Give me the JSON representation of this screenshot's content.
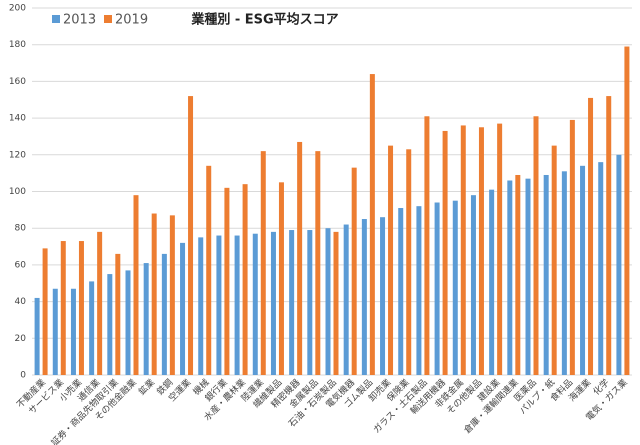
{
  "chart_data": {
    "type": "bar",
    "title": "業種別 - ESG平均スコア",
    "categories": [
      "不動産業",
      "サービス業",
      "小売業",
      "通信業",
      "証券・商品先物取引業",
      "その他金融業",
      "鉱業",
      "鉄鋼",
      "空運業",
      "機械",
      "銀行業",
      "水産・農林業",
      "陸運業",
      "繊維製品",
      "精密機器",
      "金属製品",
      "石油・石炭製品",
      "電気機器",
      "ゴム製品",
      "卸売業",
      "保険業",
      "ガラス・土石製品",
      "輸送用機器",
      "非鉄金属",
      "その他製品",
      "建設業",
      "倉庫・運輸関連業",
      "医薬品",
      "パルプ・紙",
      "食料品",
      "海運業",
      "化学",
      "電気・ガス業"
    ],
    "series": [
      {
        "name": "2013",
        "color": "#5b9bd5",
        "values": [
          42,
          47,
          47,
          51,
          55,
          57,
          61,
          66,
          72,
          75,
          76,
          76,
          77,
          78,
          79,
          79,
          80,
          82,
          85,
          86,
          91,
          92,
          94,
          95,
          98,
          101,
          106,
          107,
          109,
          111,
          114,
          116,
          120
        ]
      },
      {
        "name": "2019",
        "color": "#ed7d31",
        "values": [
          69,
          73,
          73,
          78,
          66,
          98,
          88,
          87,
          152,
          114,
          102,
          104,
          122,
          105,
          127,
          122,
          78,
          113,
          164,
          125,
          123,
          141,
          133,
          136,
          135,
          137,
          109,
          141,
          125,
          139,
          151,
          152,
          179
        ]
      }
    ],
    "ylim": [
      0,
      200
    ],
    "yticks": [
      0,
      20,
      40,
      60,
      80,
      100,
      120,
      140,
      160,
      180,
      200
    ],
    "grid": true
  }
}
